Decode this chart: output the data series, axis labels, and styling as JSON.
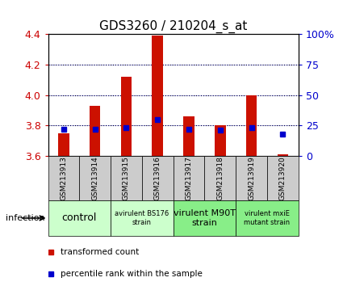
{
  "title": "GDS3260 / 210204_s_at",
  "samples": [
    "GSM213913",
    "GSM213914",
    "GSM213915",
    "GSM213916",
    "GSM213917",
    "GSM213918",
    "GSM213919",
    "GSM213920"
  ],
  "transformed_count": [
    3.75,
    3.93,
    4.12,
    4.39,
    3.86,
    3.8,
    4.0,
    3.61
  ],
  "percentile_rank": [
    22,
    22,
    23,
    30,
    22,
    21,
    23,
    18
  ],
  "ylim_left": [
    3.6,
    4.4
  ],
  "ylim_right": [
    0,
    100
  ],
  "yticks_left": [
    3.6,
    3.8,
    4.0,
    4.2,
    4.4
  ],
  "yticks_right": [
    0,
    25,
    50,
    75,
    100
  ],
  "bar_color": "#cc1100",
  "dot_color": "#0000cc",
  "bar_bottom": 3.6,
  "bg_plot": "#ffffff",
  "bg_ticklabel": "#cccccc",
  "group_defs": [
    {
      "label": "control",
      "start": 0,
      "end": 1,
      "color": "#ccffcc",
      "fontsize": 9
    },
    {
      "label": "avirulent BS176\nstrain",
      "start": 2,
      "end": 3,
      "color": "#ccffcc",
      "fontsize": 6
    },
    {
      "label": "virulent M90T\nstrain",
      "start": 4,
      "end": 5,
      "color": "#88ee88",
      "fontsize": 8
    },
    {
      "label": "virulent mxiE\nmutant strain",
      "start": 6,
      "end": 7,
      "color": "#88ee88",
      "fontsize": 6
    }
  ],
  "legend_items": [
    {
      "label": "transformed count",
      "color": "#cc1100"
    },
    {
      "label": "percentile rank within the sample",
      "color": "#0000cc"
    }
  ],
  "infection_label": "infection",
  "left_tick_color": "#cc0000",
  "right_tick_color": "#0000cc",
  "title_fontsize": 11,
  "bar_width": 0.35
}
